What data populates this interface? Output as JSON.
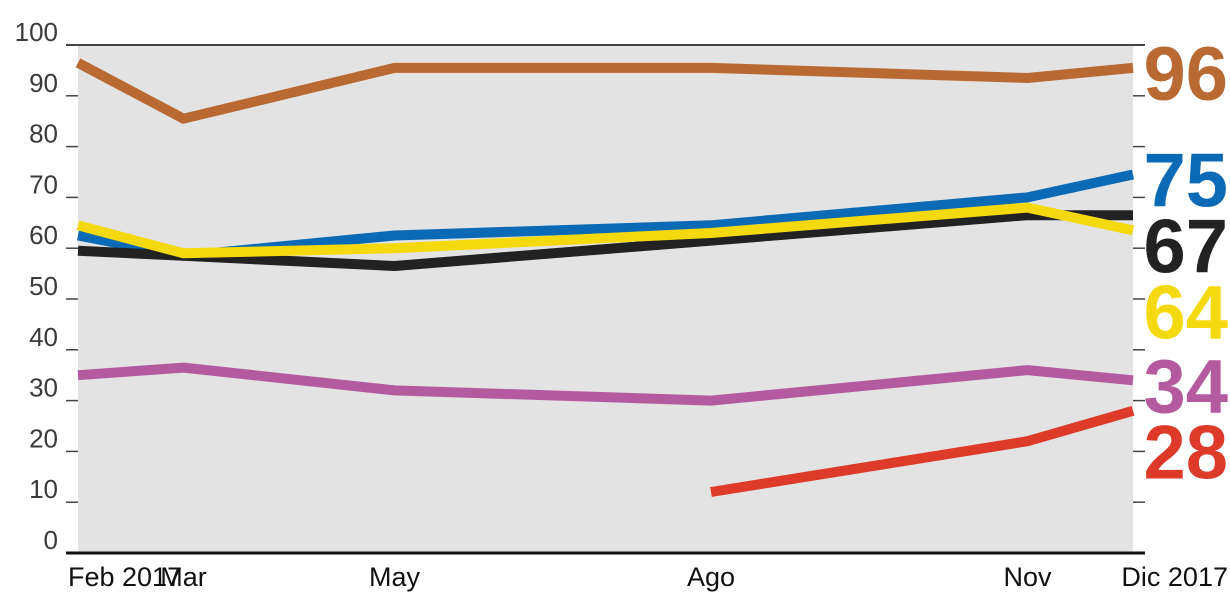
{
  "chart_data": {
    "type": "line",
    "title": "",
    "xlabel": "",
    "ylabel": "",
    "ylim": [
      0,
      100
    ],
    "yticks": [
      0,
      10,
      20,
      30,
      40,
      50,
      60,
      70,
      80,
      90,
      100
    ],
    "categories": [
      "Feb 2017",
      "Mar",
      "May",
      "Ago",
      "Nov",
      "Dic 2017"
    ],
    "x_months": [
      0,
      1,
      3,
      6,
      9,
      10
    ],
    "grid": true,
    "background": "#e3e3e3",
    "series": [
      {
        "color": "#b96a33",
        "end_label": "96",
        "values": [
          96.5,
          85.5,
          95.5,
          95.5,
          93.5,
          95.5
        ]
      },
      {
        "color": "#0a6ab5",
        "end_label": "75",
        "values": [
          62.5,
          58.5,
          62.5,
          64.5,
          70,
          74.5
        ]
      },
      {
        "color": "#222222",
        "end_label": "67",
        "values": [
          59.5,
          58.5,
          56.5,
          61.5,
          66.5,
          66.5
        ]
      },
      {
        "color": "#f5d90f",
        "end_label": "64",
        "values": [
          64.5,
          59,
          60,
          63,
          68,
          63.5
        ]
      },
      {
        "color": "#b45ba0",
        "end_label": "34",
        "values": [
          35,
          36.5,
          32,
          30,
          36,
          34
        ]
      },
      {
        "color": "#de3a29",
        "end_label": "28",
        "values": [
          null,
          null,
          null,
          12,
          22,
          28
        ]
      }
    ]
  }
}
